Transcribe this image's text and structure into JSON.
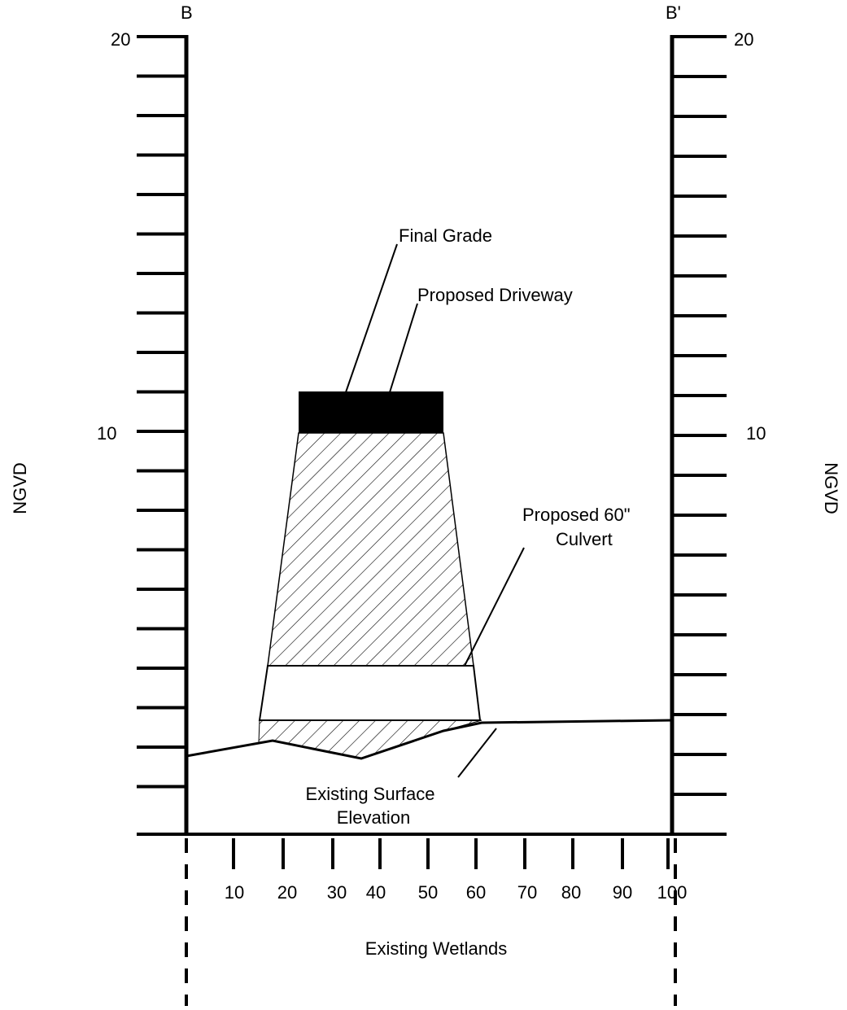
{
  "section": {
    "left_label": "B",
    "right_label": "B'"
  },
  "axes": {
    "ylabel_left": "NGVD",
    "ylabel_right": "NGVD",
    "xlabel": "Existing Wetlands",
    "y_ticks_left": [
      "20",
      "10"
    ],
    "y_ticks_right": [
      "20",
      "10"
    ],
    "x_ticks": [
      "10",
      "20",
      "30",
      "40",
      "50",
      "60",
      "70",
      "80",
      "90",
      "100"
    ]
  },
  "annotations": {
    "final_grade": "Final Grade",
    "proposed_driveway": "Proposed Driveway",
    "culvert_line1": "Proposed 60\"",
    "culvert_line2": "Culvert",
    "surface_line1": "Existing Surface",
    "surface_line2": "Elevation"
  },
  "colors": {
    "ink": "#000000",
    "background": "#ffffff"
  }
}
